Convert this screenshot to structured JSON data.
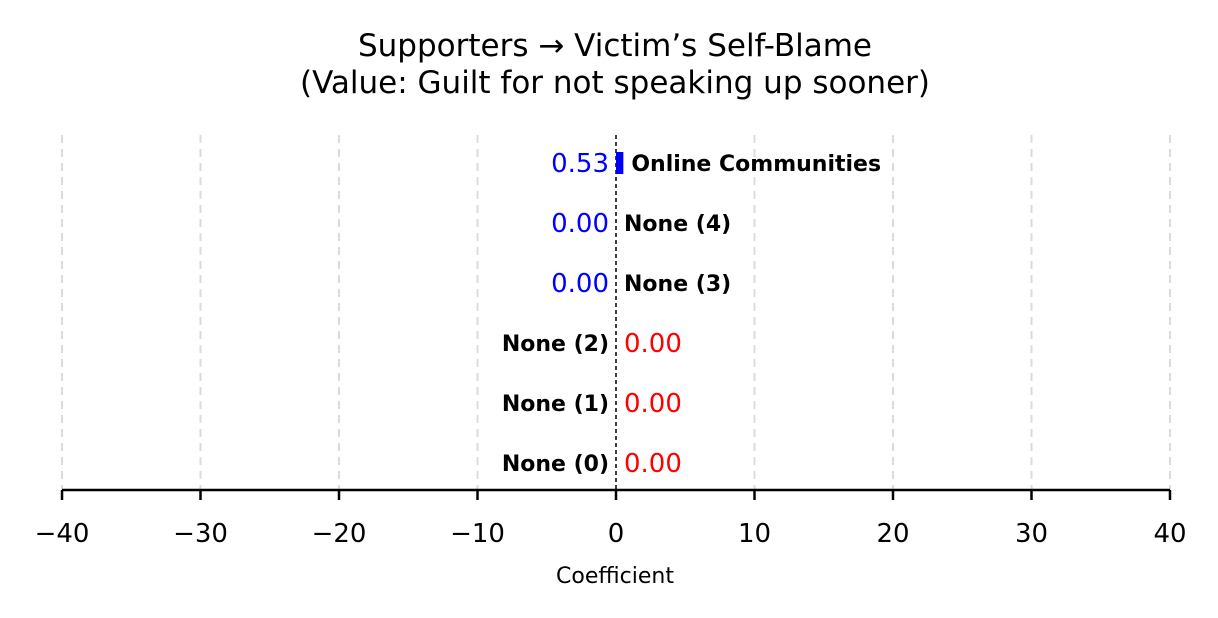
{
  "chart_data": {
    "type": "bar",
    "orientation": "horizontal",
    "title": "Supporters → Victim’s Self-Blame",
    "subtitle": "(Value: Guilt for not speaking up sooner)",
    "xlabel": "Coefficient",
    "ylabel": "",
    "xlim": [
      -40,
      40
    ],
    "xticks": [
      -40,
      -30,
      -20,
      -10,
      0,
      10,
      20,
      30,
      40
    ],
    "xtick_labels": [
      "−40",
      "−30",
      "−20",
      "−10",
      "0",
      "10",
      "20",
      "30",
      "40"
    ],
    "grid": "vertical dashed",
    "categories": [
      "Online Communities",
      "None (4)",
      "None (3)",
      "None (2)",
      "None (1)",
      "None (0)"
    ],
    "values": [
      0.53,
      0.0,
      0.0,
      0.0,
      0.0,
      0.0
    ],
    "value_labels": [
      "0.53",
      "0.00",
      "0.00",
      "0.00",
      "0.00",
      "0.00"
    ],
    "value_label_colors": [
      "#0000ff",
      "#0000ff",
      "#0000ff",
      "#ff0000",
      "#ff0000",
      "#ff0000"
    ],
    "bar_color": "#0000ff"
  }
}
